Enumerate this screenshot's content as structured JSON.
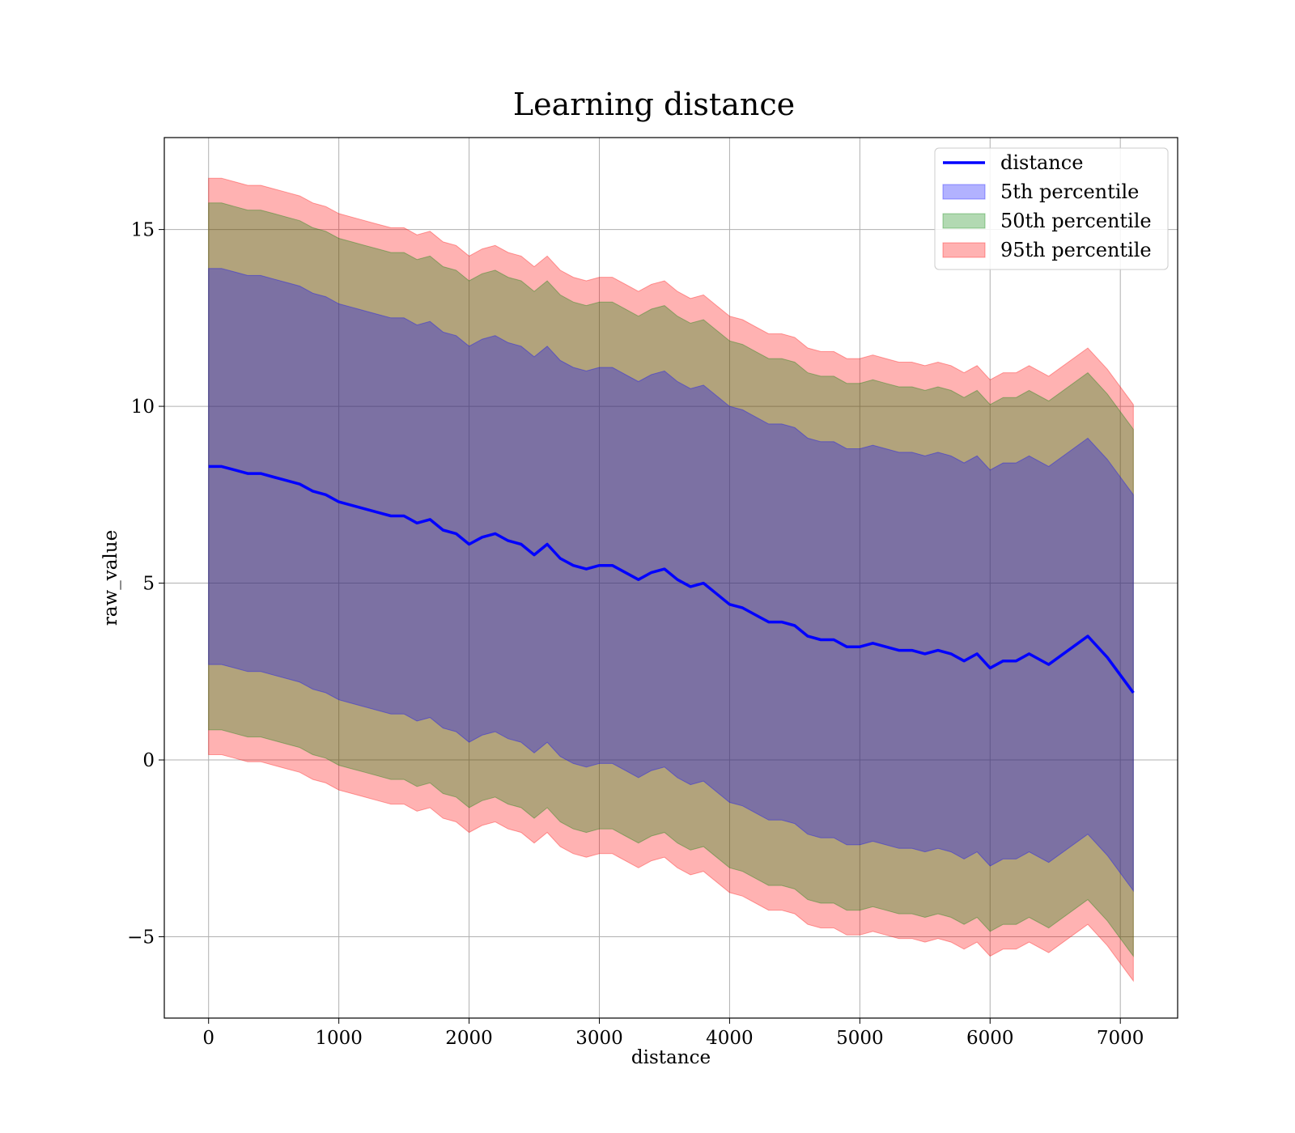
{
  "chart_data": {
    "type": "area",
    "title": "Learning distance",
    "xlabel": "distance",
    "ylabel": "raw_value",
    "xlim": [
      -340,
      7440
    ],
    "ylim": [
      -7.3,
      17.6
    ],
    "xticks": [
      0,
      1000,
      2000,
      3000,
      4000,
      5000,
      6000,
      7000
    ],
    "xtick_labels": [
      "0",
      "1000",
      "2000",
      "3000",
      "4000",
      "5000",
      "6000",
      "7000"
    ],
    "yticks": [
      -5,
      0,
      5,
      10,
      15
    ],
    "ytick_labels": [
      "−5",
      "0",
      "5",
      "10",
      "15"
    ],
    "grid": true,
    "legend_position": "top-right",
    "x": [
      0,
      100,
      200,
      300,
      400,
      500,
      600,
      700,
      800,
      900,
      1000,
      1100,
      1200,
      1300,
      1400,
      1500,
      1600,
      1700,
      1800,
      1900,
      2000,
      2100,
      2200,
      2300,
      2400,
      2500,
      2600,
      2700,
      2800,
      2900,
      3000,
      3100,
      3200,
      3300,
      3400,
      3500,
      3600,
      3700,
      3800,
      3900,
      4000,
      4100,
      4200,
      4300,
      4400,
      4500,
      4600,
      4700,
      4800,
      4900,
      5000,
      5100,
      5200,
      5300,
      5400,
      5500,
      5600,
      5700,
      5800,
      5900,
      6000,
      6100,
      6200,
      6300,
      6450,
      6750,
      6900,
      7100
    ],
    "series": [
      {
        "name": "distance",
        "kind": "line",
        "color": "#0000ff",
        "values": [
          8.3,
          8.3,
          8.2,
          8.1,
          8.1,
          8.0,
          7.9,
          7.8,
          7.6,
          7.5,
          7.3,
          7.2,
          7.1,
          7.0,
          6.9,
          6.9,
          6.7,
          6.8,
          6.5,
          6.4,
          6.1,
          6.3,
          6.4,
          6.2,
          6.1,
          5.8,
          6.1,
          5.7,
          5.5,
          5.4,
          5.5,
          5.5,
          5.3,
          5.1,
          5.3,
          5.4,
          5.1,
          4.9,
          5.0,
          4.7,
          4.4,
          4.3,
          4.1,
          3.9,
          3.9,
          3.8,
          3.5,
          3.4,
          3.4,
          3.2,
          3.2,
          3.3,
          3.2,
          3.1,
          3.1,
          3.0,
          3.1,
          3.0,
          2.8,
          3.0,
          2.6,
          2.8,
          2.8,
          3.0,
          2.7,
          3.5,
          2.9,
          1.9
        ]
      },
      {
        "name": "5th percentile",
        "kind": "band",
        "color": "#0000ff",
        "offset": 5.6
      },
      {
        "name": "50th percentile",
        "kind": "band",
        "color": "#008000",
        "offset": 7.45
      },
      {
        "name": "95th percentile",
        "kind": "band",
        "color": "#ff0000",
        "offset": 8.15
      }
    ]
  }
}
